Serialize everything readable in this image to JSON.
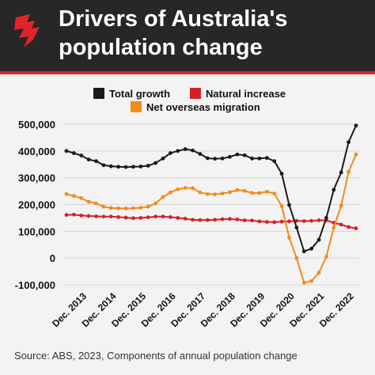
{
  "header": {
    "title_line1": "Drivers of Australia's",
    "title_line2": "population change"
  },
  "colors": {
    "header_bg": "#272727",
    "accent_red": "#e2232a",
    "total_growth": "#1a1a1a",
    "natural_increase": "#d62027",
    "net_overseas_migration": "#f28a1e"
  },
  "source": "Source: ABS, 2023, Components of annual population change",
  "chart_data": {
    "type": "line",
    "ylim": [
      -100000,
      500000
    ],
    "yticks": [
      -100000,
      0,
      100000,
      200000,
      300000,
      400000,
      500000
    ],
    "ytick_labels": [
      "-100,000",
      "0",
      "100,000",
      "200,000",
      "300,000",
      "400,000",
      "500,000"
    ],
    "xtick_labels": [
      "Dec. 2013",
      "Dec. 2014",
      "Dec. 2015",
      "Dec. 2016",
      "Dec. 2017",
      "Dec. 2018",
      "Dec. 2019",
      "Dec. 2020",
      "Dec. 2021",
      "Dec. 2022"
    ],
    "x_start": "Dec. 2013",
    "x_interval": "quarter",
    "legend_placement": "top",
    "grid": true,
    "series": [
      {
        "name": "Total growth",
        "color": "#1a1a1a",
        "values": [
          400000,
          392000,
          383000,
          368000,
          362000,
          347000,
          343000,
          341000,
          340000,
          341000,
          342000,
          345000,
          355000,
          372000,
          392000,
          400000,
          407000,
          402000,
          389000,
          373000,
          371000,
          372000,
          378000,
          387000,
          384000,
          372000,
          372000,
          374000,
          362000,
          315000,
          198000,
          114000,
          25000,
          35000,
          68000,
          150000,
          255000,
          320000,
          433000,
          495000
        ]
      },
      {
        "name": "Natural increase",
        "color": "#d62027",
        "values": [
          161000,
          162000,
          159000,
          157000,
          156000,
          155000,
          155000,
          153000,
          151000,
          149000,
          150000,
          152000,
          155000,
          155000,
          153000,
          150000,
          147000,
          143000,
          142000,
          142000,
          143000,
          145000,
          146000,
          144000,
          141000,
          140000,
          137000,
          135000,
          134000,
          136000,
          137000,
          139000,
          138000,
          139000,
          141000,
          141000,
          132000,
          125000,
          116000,
          111000
        ]
      },
      {
        "name": "Net overseas migration",
        "color": "#f28a1e",
        "values": [
          239000,
          232000,
          224000,
          210000,
          204000,
          192000,
          187000,
          186000,
          185000,
          186000,
          188000,
          192000,
          204000,
          228000,
          245000,
          257000,
          262000,
          261000,
          245000,
          239000,
          238000,
          241000,
          246000,
          254000,
          251000,
          243000,
          243000,
          248000,
          241000,
          194000,
          76000,
          0,
          -92000,
          -86000,
          -55000,
          5000,
          114000,
          195000,
          322000,
          387000
        ]
      }
    ]
  }
}
